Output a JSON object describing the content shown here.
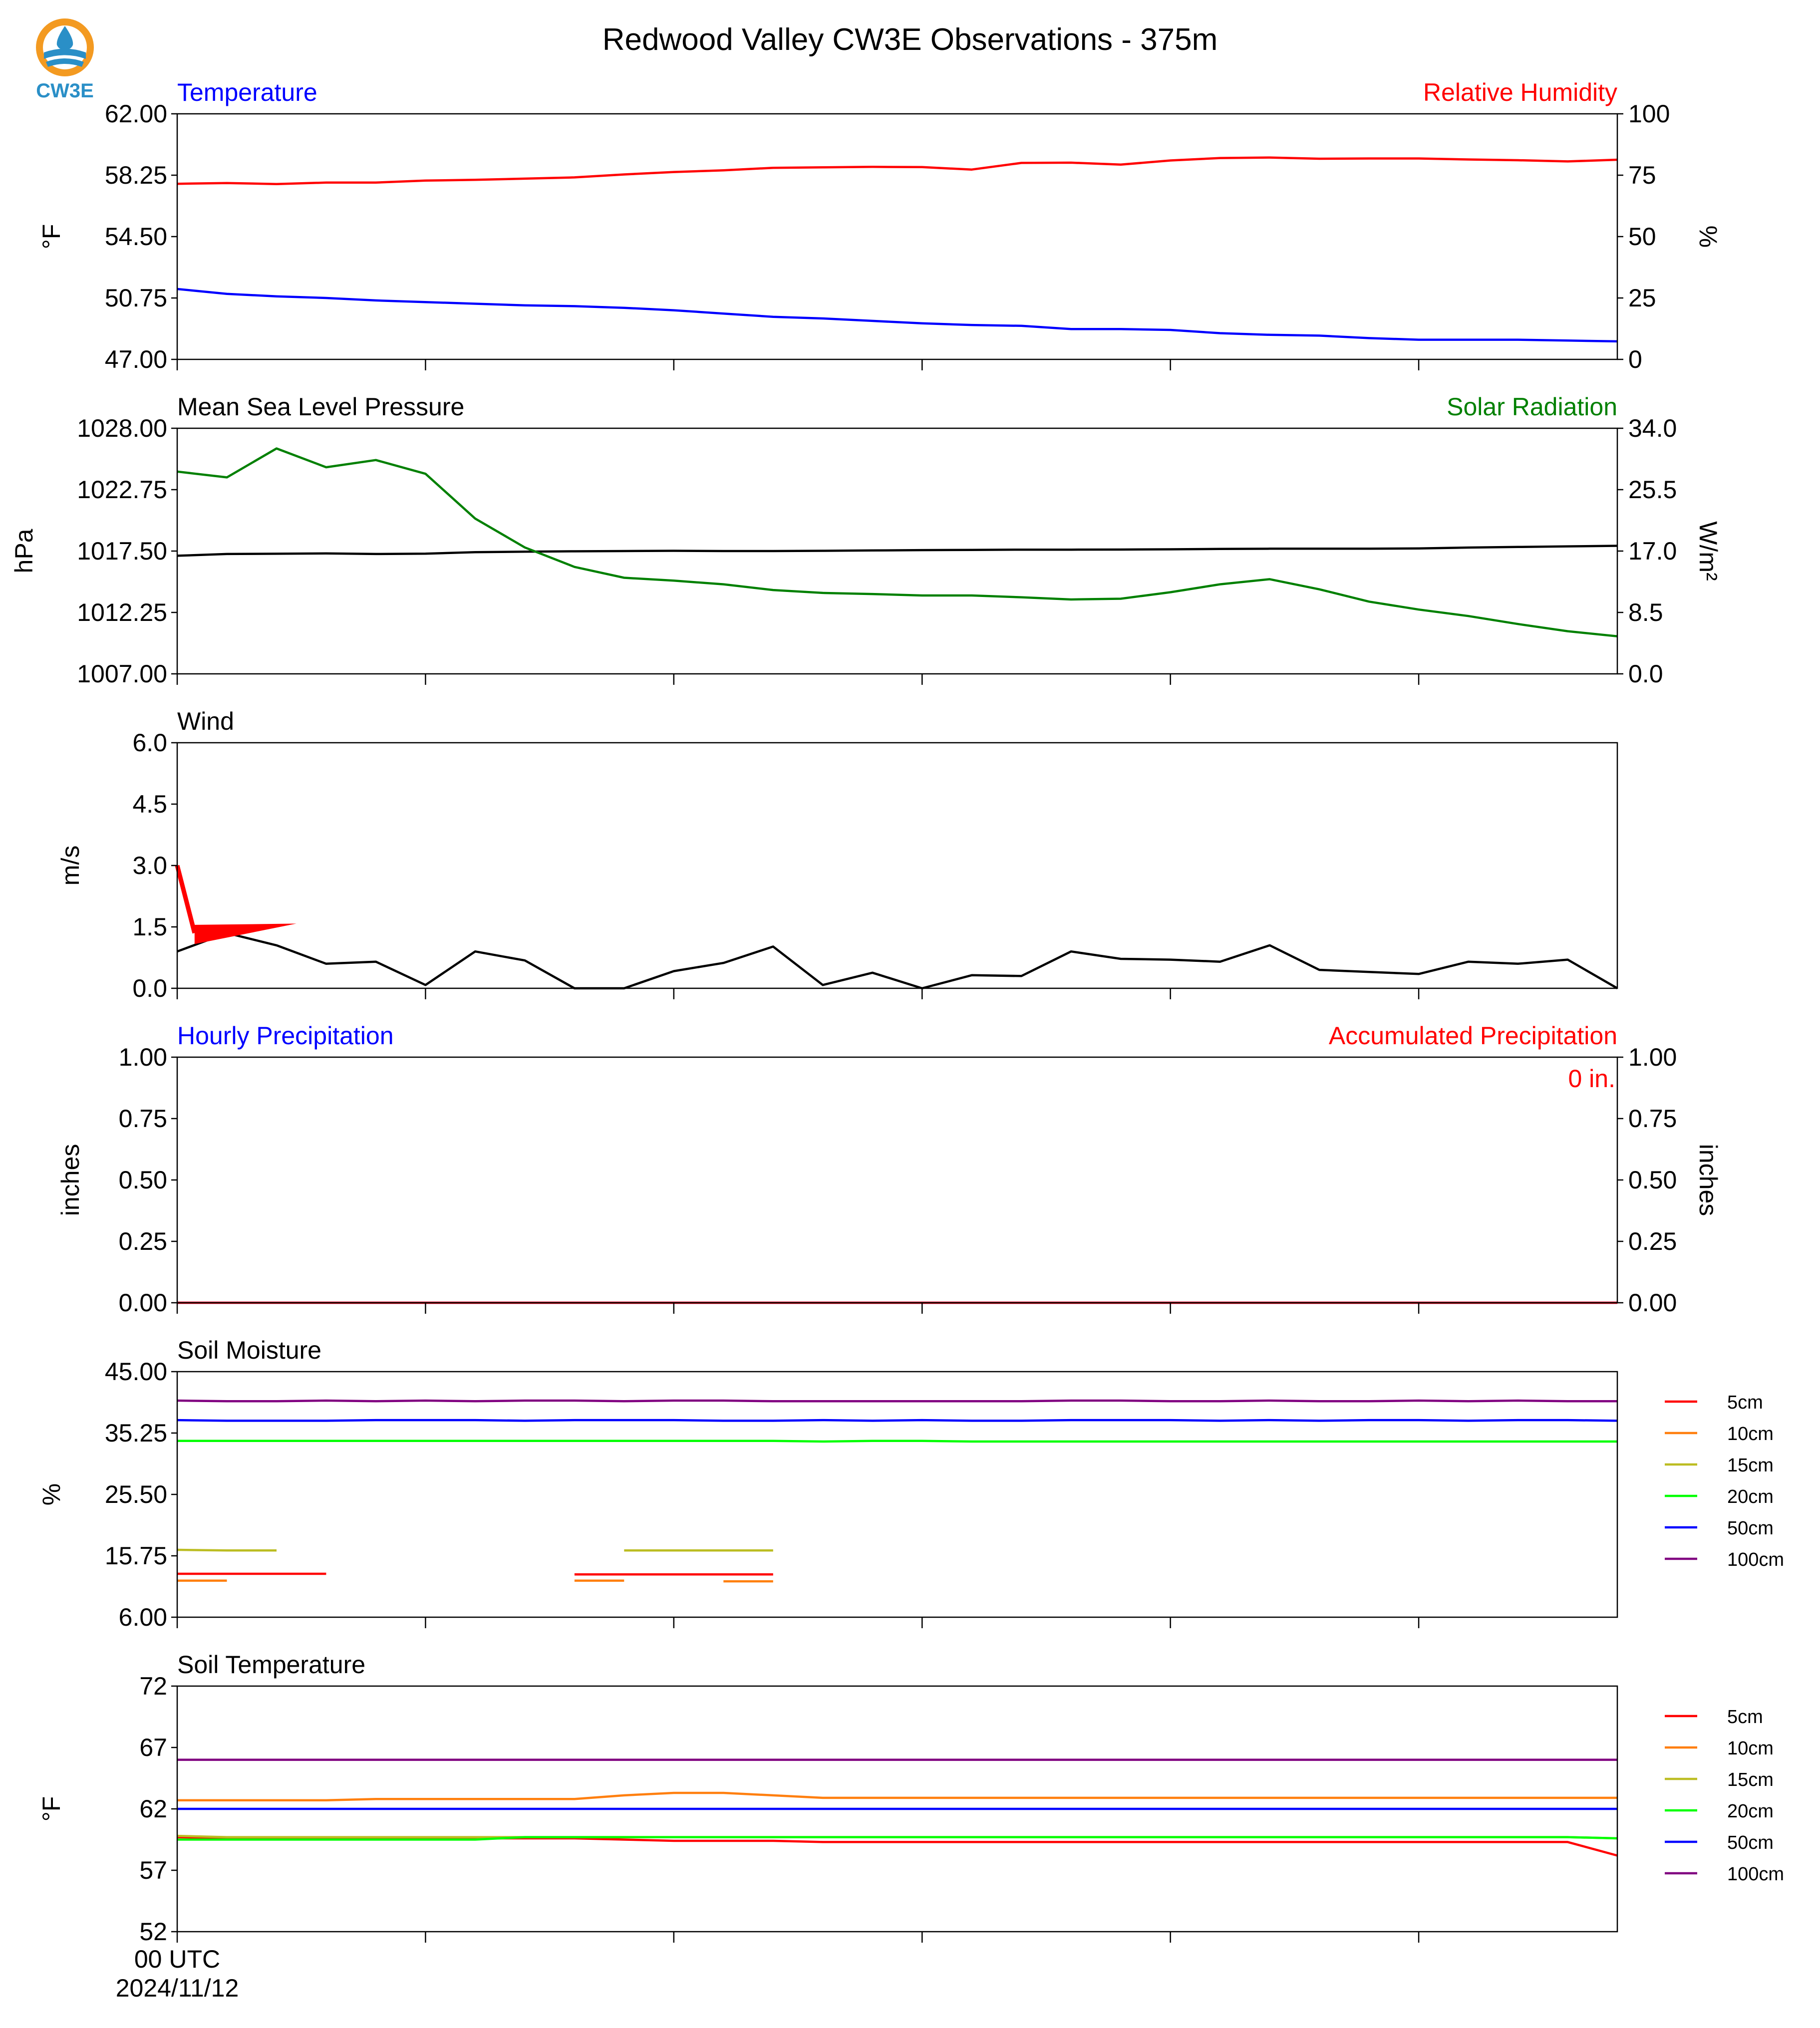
{
  "page": {
    "title": "Redwood Valley CW3E Observations - 375m",
    "logo_text": "CW3E",
    "logo_icon": "cw3e-logo-icon"
  },
  "colors": {
    "temperature": "#0000ff",
    "humidity": "#ff0000",
    "pressure": "#000000",
    "solar": "#008000",
    "wind": "#000000",
    "barb": "#ff0000",
    "precip_hourly": "#0000ff",
    "precip_accum": "#ff0000",
    "soil_5cm": "#ff0000",
    "soil_10cm": "#ff7f0e",
    "soil_15cm": "#bcbd22",
    "soil_20cm": "#00ff00",
    "soil_50cm": "#0000ff",
    "soil_100cm": "#800080",
    "logo_orange": "#f39a21",
    "logo_blue": "#2a8fc7"
  },
  "x_axis": {
    "range": [
      0,
      29
    ],
    "major_ticks": [
      0,
      5,
      10,
      15,
      20,
      25
    ],
    "start_label_line1": "00 UTC",
    "start_label_line2": "2024/11/12"
  },
  "chart_data": [
    {
      "id": "temp_rh",
      "type": "line",
      "left_label": "Temperature",
      "right_label": "Relative Humidity",
      "ylabel": "°F",
      "ylabel_right": "%",
      "ylim": [
        47.0,
        62.0
      ],
      "ylim_right": [
        0,
        100
      ],
      "yticks": [
        "62.00",
        "58.25",
        "54.50",
        "50.75",
        "47.00"
      ],
      "yticks_right": [
        "100",
        "75",
        "50",
        "25",
        "0"
      ],
      "series": [
        {
          "name": "Temperature",
          "axis": "left",
          "color_key": "temperature",
          "values": [
            51.3,
            51.0,
            50.85,
            50.75,
            50.6,
            50.5,
            50.4,
            50.3,
            50.25,
            50.15,
            50.0,
            49.8,
            49.6,
            49.5,
            49.35,
            49.2,
            49.1,
            49.05,
            48.85,
            48.85,
            48.8,
            48.6,
            48.5,
            48.45,
            48.3,
            48.2,
            48.2,
            48.2,
            48.15,
            48.1
          ]
        },
        {
          "name": "Relative Humidity",
          "axis": "right",
          "color_key": "humidity",
          "values": [
            71.5,
            71.8,
            71.4,
            72.0,
            72.0,
            72.8,
            73.1,
            73.6,
            74.1,
            75.3,
            76.3,
            77.0,
            78.0,
            78.2,
            78.4,
            78.3,
            77.3,
            80.0,
            80.1,
            79.3,
            81.0,
            82.0,
            82.2,
            81.7,
            81.8,
            81.8,
            81.4,
            81.1,
            80.6,
            81.3
          ]
        }
      ]
    },
    {
      "id": "pres_solar",
      "type": "line",
      "left_label": "Mean Sea Level Pressure",
      "right_label": "Solar Radiation",
      "ylabel": "hPa",
      "ylabel_right": "W/m²",
      "ylim": [
        1007.0,
        1028.0
      ],
      "ylim_right": [
        0.0,
        34.0
      ],
      "yticks": [
        "1028.00",
        "1022.75",
        "1017.50",
        "1012.25",
        "1007.00"
      ],
      "yticks_right": [
        "34.0",
        "25.5",
        "17.0",
        "8.5",
        "0.0"
      ],
      "series": [
        {
          "name": "Mean Sea Level Pressure",
          "axis": "left",
          "color_key": "pressure",
          "values": [
            1017.1,
            1017.25,
            1017.27,
            1017.3,
            1017.25,
            1017.28,
            1017.4,
            1017.45,
            1017.48,
            1017.5,
            1017.52,
            1017.5,
            1017.5,
            1017.52,
            1017.55,
            1017.58,
            1017.6,
            1017.62,
            1017.62,
            1017.63,
            1017.65,
            1017.68,
            1017.7,
            1017.7,
            1017.7,
            1017.72,
            1017.8,
            1017.85,
            1017.9,
            1017.95
          ]
        },
        {
          "name": "Solar Radiation",
          "axis": "right",
          "color_key": "solar",
          "values": [
            28.0,
            27.2,
            31.2,
            28.6,
            29.6,
            27.7,
            21.5,
            17.5,
            14.8,
            13.3,
            12.9,
            12.4,
            11.6,
            11.2,
            11.05,
            10.85,
            10.85,
            10.6,
            10.3,
            10.4,
            11.3,
            12.4,
            13.1,
            11.7,
            10.0,
            8.9,
            8.0,
            6.9,
            5.9,
            5.2
          ]
        }
      ]
    },
    {
      "id": "wind",
      "type": "line",
      "left_label": "Wind",
      "ylabel": "m/s",
      "ylim": [
        0.0,
        6.0
      ],
      "yticks": [
        "6.0",
        "4.5",
        "3.0",
        "1.5",
        "0.0"
      ],
      "series": [
        {
          "name": "Wind",
          "axis": "left",
          "color_key": "wind",
          "values": [
            0.9,
            1.35,
            1.05,
            0.6,
            0.65,
            0.08,
            0.9,
            0.68,
            0.0,
            0.0,
            0.42,
            0.62,
            1.02,
            0.08,
            0.38,
            0.0,
            0.32,
            0.3,
            0.9,
            0.72,
            0.7,
            0.65,
            1.05,
            0.45,
            0.4,
            0.35,
            0.65,
            0.6,
            0.7,
            0.0
          ]
        }
      ],
      "barb": {
        "x": 0,
        "shaft_to": [
          2.4,
          1.5
        ],
        "flag": [
          [
            0.35,
            1.55
          ],
          [
            2.4,
            1.58
          ],
          [
            0.35,
            1.08
          ]
        ],
        "color_key": "barb"
      }
    },
    {
      "id": "precip",
      "type": "line",
      "left_label": "Hourly Precipitation",
      "right_label": "Accumulated Precipitation",
      "ylabel": "inches",
      "ylabel_right": "inches",
      "ylim": [
        0.0,
        1.0
      ],
      "ylim_right": [
        0.0,
        1.0
      ],
      "yticks": [
        "1.00",
        "0.75",
        "0.50",
        "0.25",
        "0.00"
      ],
      "yticks_right": [
        "1.00",
        "0.75",
        "0.50",
        "0.25",
        "0.00"
      ],
      "annotation": "0 in.",
      "series": [
        {
          "name": "Hourly Precipitation",
          "axis": "left",
          "color_key": "precip_hourly",
          "values": [
            0,
            0,
            0,
            0,
            0,
            0,
            0,
            0,
            0,
            0,
            0,
            0,
            0,
            0,
            0,
            0,
            0,
            0,
            0,
            0,
            0,
            0,
            0,
            0,
            0,
            0,
            0,
            0,
            0,
            0
          ]
        },
        {
          "name": "Accumulated Precipitation",
          "axis": "right",
          "color_key": "precip_accum",
          "values": [
            0,
            0,
            0,
            0,
            0,
            0,
            0,
            0,
            0,
            0,
            0,
            0,
            0,
            0,
            0,
            0,
            0,
            0,
            0,
            0,
            0,
            0,
            0,
            0,
            0,
            0,
            0,
            0,
            0,
            0
          ]
        }
      ]
    },
    {
      "id": "soil_moisture",
      "type": "line",
      "left_label": "Soil Moisture",
      "ylabel": "%",
      "ylim": [
        6.0,
        45.0
      ],
      "yticks": [
        "45.00",
        "35.25",
        "25.50",
        "15.75",
        "6.00"
      ],
      "legend": [
        "5cm",
        "10cm",
        "15cm",
        "20cm",
        "50cm",
        "100cm"
      ],
      "series": [
        {
          "name": "5cm",
          "color_key": "soil_5cm",
          "values": [
            12.9,
            12.9,
            12.9,
            12.9,
            null,
            null,
            null,
            null,
            12.8,
            12.8,
            12.8,
            12.8,
            12.8,
            null,
            null,
            null,
            null,
            null,
            null,
            null,
            null,
            null,
            null,
            null,
            null,
            null,
            null,
            null,
            null,
            null
          ]
        },
        {
          "name": "10cm",
          "color_key": "soil_10cm",
          "segments": [
            [
              [
                0,
                11.8
              ],
              [
                1,
                11.8
              ]
            ],
            [
              [
                8,
                11.8
              ],
              [
                9,
                11.8
              ]
            ],
            [
              [
                11,
                11.7
              ],
              [
                12,
                11.7
              ]
            ]
          ]
        },
        {
          "name": "15cm",
          "color_key": "soil_15cm",
          "values": [
            16.7,
            16.6,
            16.6,
            null,
            null,
            null,
            null,
            null,
            null,
            16.6,
            16.6,
            16.6,
            16.6,
            null,
            null,
            null,
            null,
            null,
            null,
            null,
            null,
            null,
            null,
            null,
            null,
            null,
            null,
            null,
            null,
            null
          ]
        },
        {
          "name": "20cm",
          "color_key": "soil_20cm",
          "values": [
            34.0,
            34.0,
            34.0,
            34.0,
            34.0,
            34.0,
            34.0,
            34.0,
            34.0,
            34.0,
            34.0,
            34.0,
            34.0,
            33.9,
            34.0,
            34.0,
            33.9,
            33.9,
            33.9,
            33.9,
            33.9,
            33.9,
            33.9,
            33.9,
            33.9,
            33.9,
            33.9,
            33.9,
            33.9,
            33.9
          ]
        },
        {
          "name": "50cm",
          "color_key": "soil_50cm",
          "values": [
            37.3,
            37.2,
            37.2,
            37.2,
            37.3,
            37.3,
            37.3,
            37.2,
            37.3,
            37.3,
            37.3,
            37.2,
            37.2,
            37.3,
            37.2,
            37.3,
            37.2,
            37.2,
            37.3,
            37.3,
            37.3,
            37.2,
            37.3,
            37.2,
            37.3,
            37.3,
            37.2,
            37.3,
            37.3,
            37.2
          ]
        },
        {
          "name": "100cm",
          "color_key": "soil_100cm",
          "values": [
            40.4,
            40.3,
            40.3,
            40.4,
            40.3,
            40.4,
            40.3,
            40.4,
            40.4,
            40.3,
            40.4,
            40.4,
            40.3,
            40.3,
            40.3,
            40.3,
            40.3,
            40.3,
            40.4,
            40.4,
            40.3,
            40.3,
            40.4,
            40.3,
            40.3,
            40.4,
            40.3,
            40.4,
            40.3,
            40.3
          ]
        }
      ]
    },
    {
      "id": "soil_temp",
      "type": "line",
      "left_label": "Soil Temperature",
      "ylabel": "°F",
      "ylim": [
        52,
        72
      ],
      "yticks": [
        "72",
        "67",
        "62",
        "57",
        "52"
      ],
      "legend": [
        "5cm",
        "10cm",
        "15cm",
        "20cm",
        "50cm",
        "100cm"
      ],
      "series": [
        {
          "name": "5cm",
          "color_key": "soil_5cm",
          "values": [
            59.7,
            59.6,
            59.6,
            59.6,
            59.6,
            59.6,
            59.6,
            59.6,
            59.6,
            59.5,
            59.4,
            59.4,
            59.4,
            59.3,
            59.3,
            59.3,
            59.3,
            59.3,
            59.3,
            59.3,
            59.3,
            59.3,
            59.3,
            59.3,
            59.3,
            59.3,
            59.3,
            59.3,
            59.3,
            58.2
          ]
        },
        {
          "name": "10cm",
          "color_key": "soil_10cm",
          "values": [
            62.7,
            62.7,
            62.7,
            62.7,
            62.8,
            62.8,
            62.8,
            62.8,
            62.8,
            63.1,
            63.3,
            63.3,
            63.1,
            62.9,
            62.9,
            62.9,
            62.9,
            62.9,
            62.9,
            62.9,
            62.9,
            62.9,
            62.9,
            62.9,
            62.9,
            62.9,
            62.9,
            62.9,
            62.9,
            62.9
          ]
        },
        {
          "name": "15cm",
          "color_key": "soil_15cm",
          "values": [
            59.8,
            59.7,
            59.7,
            59.7,
            59.7,
            59.7,
            59.7,
            59.7,
            59.7,
            59.7,
            59.7,
            59.7,
            59.7,
            59.7,
            59.7,
            59.7,
            59.7,
            59.7,
            59.7,
            59.7,
            59.7,
            59.7,
            59.7,
            59.7,
            59.7,
            59.7,
            59.7,
            59.7,
            59.7,
            59.6
          ]
        },
        {
          "name": "20cm",
          "color_key": "soil_20cm",
          "values": [
            59.5,
            59.5,
            59.5,
            59.5,
            59.5,
            59.5,
            59.5,
            59.7,
            59.7,
            59.7,
            59.7,
            59.7,
            59.7,
            59.7,
            59.7,
            59.7,
            59.7,
            59.7,
            59.7,
            59.7,
            59.7,
            59.7,
            59.7,
            59.7,
            59.7,
            59.7,
            59.7,
            59.7,
            59.7,
            59.6
          ]
        },
        {
          "name": "50cm",
          "color_key": "soil_50cm",
          "values": [
            62.0,
            62.0,
            62.0,
            62.0,
            62.0,
            62.0,
            62.0,
            62.0,
            62.0,
            62.0,
            62.0,
            62.0,
            62.0,
            62.0,
            62.0,
            62.0,
            62.0,
            62.0,
            62.0,
            62.0,
            62.0,
            62.0,
            62.0,
            62.0,
            62.0,
            62.0,
            62.0,
            62.0,
            62.0,
            62.0
          ]
        },
        {
          "name": "100cm",
          "color_key": "soil_100cm",
          "values": [
            66.0,
            66.0,
            66.0,
            66.0,
            66.0,
            66.0,
            66.0,
            66.0,
            66.0,
            66.0,
            66.0,
            66.0,
            66.0,
            66.0,
            66.0,
            66.0,
            66.0,
            66.0,
            66.0,
            66.0,
            66.0,
            66.0,
            66.0,
            66.0,
            66.0,
            66.0,
            66.0,
            66.0,
            66.0,
            66.0
          ]
        }
      ]
    }
  ]
}
